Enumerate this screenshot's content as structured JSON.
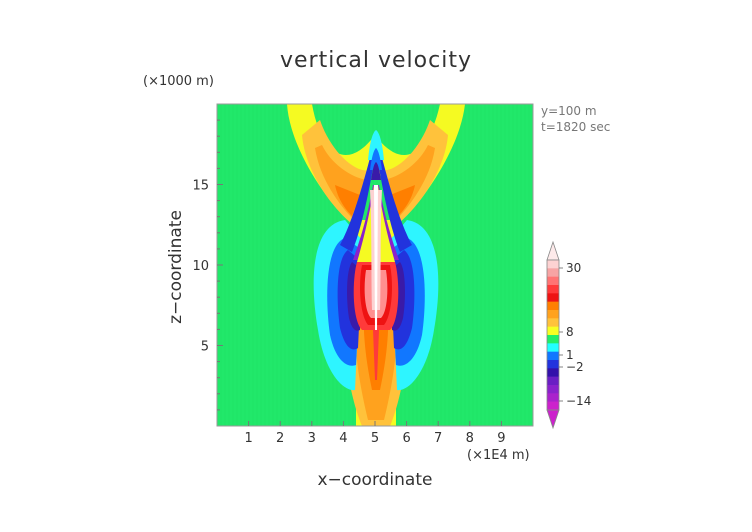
{
  "chart_data": {
    "type": "heatmap",
    "title": "vertical velocity",
    "xlabel": "x−coordinate",
    "ylabel": "z−coordinate",
    "x_unit": "(×1E4 m)",
    "y_unit": "(×1000 m)",
    "annotations": [
      "y=100  m",
      "t=1820 sec"
    ],
    "xlim": [
      0,
      10
    ],
    "ylim": [
      0,
      20
    ],
    "x_ticks": [
      1,
      2,
      3,
      4,
      5,
      6,
      7,
      8,
      9
    ],
    "y_ticks": [
      5,
      10,
      15
    ],
    "colorbar_labels": [
      "30",
      "8",
      "1",
      "−2",
      "−14"
    ],
    "colorbar_levels": [
      {
        "color": "#fdd2d2"
      },
      {
        "color": "#f7a4a4"
      },
      {
        "color": "#ff7474"
      },
      {
        "color": "#ff3a3a"
      },
      {
        "color": "#ee1313"
      },
      {
        "color": "#ff7f00"
      },
      {
        "color": "#ffa21e"
      },
      {
        "color": "#ffc23b"
      },
      {
        "color": "#f7ff22"
      },
      {
        "color": "#22ee66"
      },
      {
        "color": "#22ffff"
      },
      {
        "color": "#1177ff"
      },
      {
        "color": "#2233dd"
      },
      {
        "color": "#3311aa"
      },
      {
        "color": "#6a1fc4"
      },
      {
        "color": "#8a22cc"
      },
      {
        "color": "#aa22cc"
      },
      {
        "color": "#cc22cc"
      }
    ],
    "field_colors": {
      "background": "#21e86a",
      "yellow": "#f5fa22",
      "light_orange": "#ffc23b",
      "orange": "#ffa21e",
      "dark_orange": "#ff7f00",
      "red": "#ff3a3a",
      "dark_red": "#ee1313",
      "pink": "#ff8f8f",
      "light_pink": "#fdd2d2",
      "cyan": "#2ef5ff",
      "blue": "#1177ff",
      "dark_blue": "#2233dd",
      "navy": "#3a1aa8",
      "purple": "#8a22cc"
    }
  }
}
